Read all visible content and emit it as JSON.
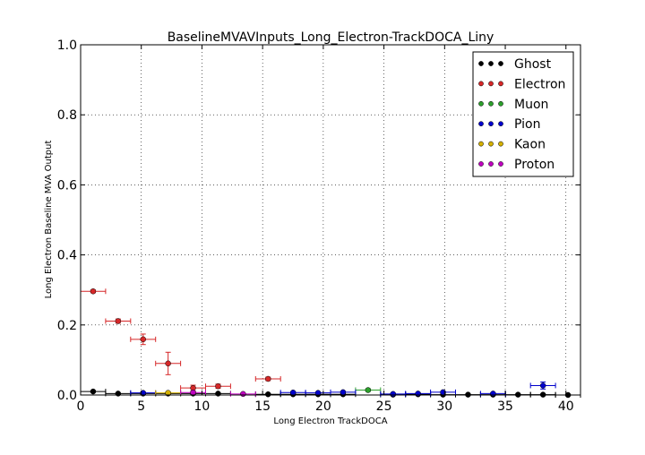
{
  "chart_data": {
    "type": "scatter",
    "title": "BaselineMVAVInputs_Long_Electron-TrackDOCA_Liny",
    "xlabel": "Long Electron TrackDOCA",
    "ylabel": "Long Electron Baseline MVA Output",
    "xlim": [
      0,
      41.2
    ],
    "ylim": [
      0,
      1.0
    ],
    "xticks": [
      0,
      5,
      10,
      15,
      20,
      25,
      30,
      35,
      40
    ],
    "xtick_labels": [
      "0",
      "5",
      "10",
      "15",
      "20",
      "25",
      "30",
      "35",
      "40"
    ],
    "yticks": [
      0.0,
      0.2,
      0.4,
      0.6,
      0.8,
      1.0
    ],
    "ytick_labels": [
      "0.0",
      "0.2",
      "0.4",
      "0.6",
      "0.8",
      "1.0"
    ],
    "grid": true,
    "legend_position": "top-right",
    "series": [
      {
        "name": "Ghost",
        "color": "#000000",
        "x": [
          1.03,
          3.09,
          5.15,
          7.21,
          9.27,
          11.33,
          15.45,
          17.51,
          19.57,
          21.63,
          25.75,
          27.81,
          29.87,
          31.93,
          33.99,
          36.05,
          38.11,
          40.17
        ],
        "y": [
          0.01,
          0.004,
          0.004,
          0.004,
          0.004,
          0.004,
          0.002,
          0.002,
          0.002,
          0.002,
          0.001,
          0.002,
          0.001,
          0.001,
          0.001,
          0.001,
          0.001,
          0.0
        ],
        "xerr": 1.03,
        "yerr": [
          0.002,
          0.001,
          0.001,
          0.001,
          0.001,
          0.001,
          0.001,
          0.001,
          0.001,
          0.001,
          0.001,
          0.001,
          0.001,
          0.001,
          0.001,
          0.001,
          0.001,
          0.001
        ]
      },
      {
        "name": "Electron",
        "color": "#d62728",
        "x": [
          1.03,
          3.09,
          5.15,
          7.21,
          9.27,
          11.33,
          15.45
        ],
        "y": [
          0.296,
          0.211,
          0.159,
          0.09,
          0.02,
          0.025,
          0.046
        ],
        "xerr": 1.03,
        "yerr": [
          0.004,
          0.006,
          0.015,
          0.032,
          0.008,
          0.006,
          0.005
        ]
      },
      {
        "name": "Muon",
        "color": "#2ca02c",
        "x": [
          23.69
        ],
        "y": [
          0.014
        ],
        "xerr": 1.03,
        "yerr": [
          0.004
        ]
      },
      {
        "name": "Pion",
        "color": "#0000cc",
        "x": [
          5.15,
          17.51,
          19.57,
          21.63,
          25.75,
          27.81,
          29.87,
          33.99,
          38.11
        ],
        "y": [
          0.006,
          0.007,
          0.006,
          0.008,
          0.003,
          0.004,
          0.008,
          0.004,
          0.027
        ],
        "xerr": 1.03,
        "yerr": [
          0.002,
          0.002,
          0.002,
          0.002,
          0.002,
          0.002,
          0.002,
          0.002,
          0.01
        ]
      },
      {
        "name": "Kaon",
        "color": "#d4b000",
        "x": [
          7.21
        ],
        "y": [
          0.006
        ],
        "xerr": 1.03,
        "yerr": [
          0.003
        ]
      },
      {
        "name": "Proton",
        "color": "#bf00bf",
        "x": [
          9.27,
          13.39
        ],
        "y": [
          0.007,
          0.003
        ],
        "xerr": 1.03,
        "yerr": [
          0.003,
          0.002
        ]
      }
    ]
  }
}
